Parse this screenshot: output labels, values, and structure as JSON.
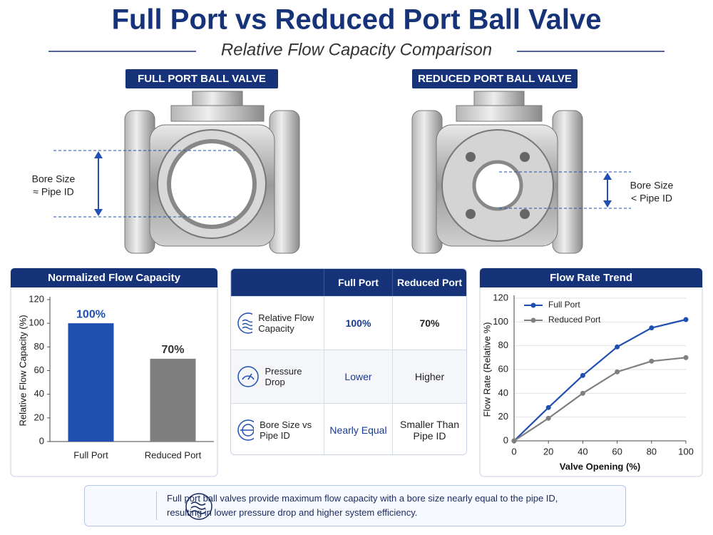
{
  "header": {
    "title": "Full Port vs Reduced Port Ball Valve",
    "subtitle": "Relative Flow Capacity Comparison"
  },
  "valves": [
    {
      "label": "FULL PORT BALL VALVE",
      "annotation": [
        "Bore Size",
        "≈ Pipe ID"
      ]
    },
    {
      "label": "REDUCED PORT BALL VALVE",
      "annotation": [
        "Bore Size",
        "< Pipe ID"
      ]
    }
  ],
  "chart_data": [
    {
      "type": "bar",
      "title": "Normalized Flow Capacity",
      "ylabel": "Relative Flow Capacity (%)",
      "categories": [
        "Full Port",
        "Reduced Port"
      ],
      "values": [
        100,
        70
      ],
      "value_labels": [
        "100%",
        "70%"
      ],
      "colors": [
        "#1f4fb0",
        "#7f7f7f"
      ],
      "ylim": [
        0,
        120
      ],
      "yticks": [
        0,
        20,
        40,
        60,
        80,
        100,
        120
      ],
      "grid": false
    },
    {
      "type": "line",
      "title": "Flow Rate Trend",
      "xlabel": "Valve Opening (%)",
      "ylabel": "Flow Rate (Relative %)",
      "x": [
        0,
        20,
        40,
        60,
        80,
        100
      ],
      "xlim": [
        0,
        100
      ],
      "xticks": [
        0,
        20,
        40,
        60,
        80,
        100
      ],
      "ylim": [
        0,
        120
      ],
      "yticks": [
        0,
        20,
        40,
        60,
        80,
        100,
        120
      ],
      "grid": true,
      "legend": "upper left",
      "series": [
        {
          "name": "Full Port",
          "color": "#1f4fb0",
          "values": [
            0,
            28,
            55,
            79,
            95,
            102
          ]
        },
        {
          "name": "Reduced Port",
          "color": "#7f7f7f",
          "values": [
            0,
            19,
            40,
            58,
            67,
            70
          ]
        }
      ]
    }
  ],
  "table": {
    "columns": [
      "Full Port",
      "Reduced Port"
    ],
    "rows": [
      {
        "label": "Relative Flow Capacity",
        "cells": [
          "100%",
          "70%"
        ]
      },
      {
        "label": "Pressure Drop",
        "cells": [
          "Lower",
          "Higher"
        ]
      },
      {
        "label": "Bore Size vs Pipe ID",
        "cells": [
          "Nearly Equal",
          "Smaller Than Pipe ID"
        ]
      }
    ]
  },
  "note": "Full port ball valves provide maximum flow capacity with a bore size nearly equal to the pipe ID, resulting in lower pressure drop and higher system efficiency."
}
